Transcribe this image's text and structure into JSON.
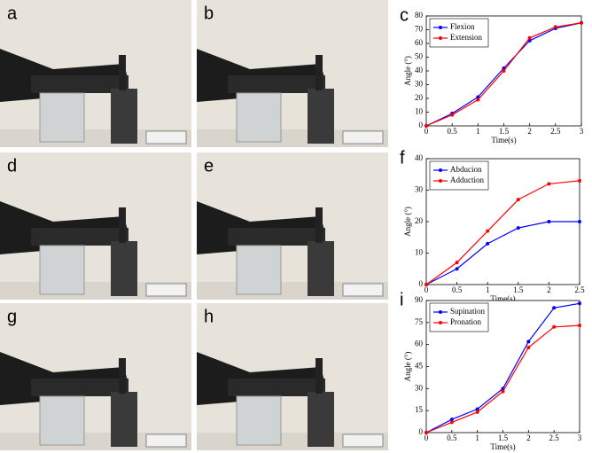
{
  "photo_labels": [
    "a",
    "b",
    "d",
    "e",
    "g",
    "h"
  ],
  "chart_data": [
    {
      "type": "line",
      "panel_label": "c",
      "x_label": "Time(s)",
      "y_label": "Angle (°)",
      "x": [
        0,
        0.5,
        1,
        1.5,
        2,
        2.5,
        3
      ],
      "xlim": [
        0,
        3
      ],
      "xticks": [
        0,
        0.5,
        1,
        1.5,
        2,
        2.5,
        3
      ],
      "ylim": [
        0,
        80
      ],
      "yticks": [
        0,
        10,
        20,
        30,
        40,
        50,
        60,
        70,
        80
      ],
      "legend": "upper left",
      "series": [
        {
          "name": "Flexion",
          "color": "#0000ff",
          "values": [
            0,
            9,
            21,
            42,
            62,
            71,
            75
          ]
        },
        {
          "name": "Extension",
          "color": "#ff0000",
          "values": [
            0,
            8,
            19,
            40,
            64,
            72,
            75
          ]
        }
      ]
    },
    {
      "type": "line",
      "panel_label": "f",
      "x_label": "Time(s)",
      "y_label": "Angle (°)",
      "x": [
        0,
        0.5,
        1,
        1.5,
        2,
        2.5
      ],
      "xlim": [
        0,
        2.5
      ],
      "xticks": [
        0,
        0.5,
        1,
        1.5,
        2,
        2.5
      ],
      "ylim": [
        0,
        40
      ],
      "yticks": [
        0,
        10,
        20,
        30,
        40
      ],
      "legend": "upper left",
      "series": [
        {
          "name": "Abducion",
          "color": "#0000ff",
          "values": [
            0,
            5,
            13,
            18,
            20,
            20
          ]
        },
        {
          "name": "Adduction",
          "color": "#ff0000",
          "values": [
            0,
            7,
            17,
            27,
            32,
            33
          ]
        }
      ]
    },
    {
      "type": "line",
      "panel_label": "i",
      "x_label": "Time(s)",
      "y_label": "Angle (°)",
      "x": [
        0,
        0.5,
        1,
        1.5,
        2,
        2.5,
        3
      ],
      "xlim": [
        0,
        3
      ],
      "xticks": [
        0,
        0.5,
        1,
        1.5,
        2,
        2.5,
        3
      ],
      "ylim": [
        0,
        90
      ],
      "yticks": [
        0,
        15,
        30,
        45,
        60,
        75,
        90
      ],
      "legend": "upper left",
      "series": [
        {
          "name": "Supination",
          "color": "#0000ff",
          "values": [
            0,
            9,
            16,
            30,
            62,
            85,
            88
          ]
        },
        {
          "name": "Pronation",
          "color": "#ff0000",
          "values": [
            0,
            7,
            14,
            28,
            58,
            72,
            73
          ]
        }
      ]
    }
  ]
}
